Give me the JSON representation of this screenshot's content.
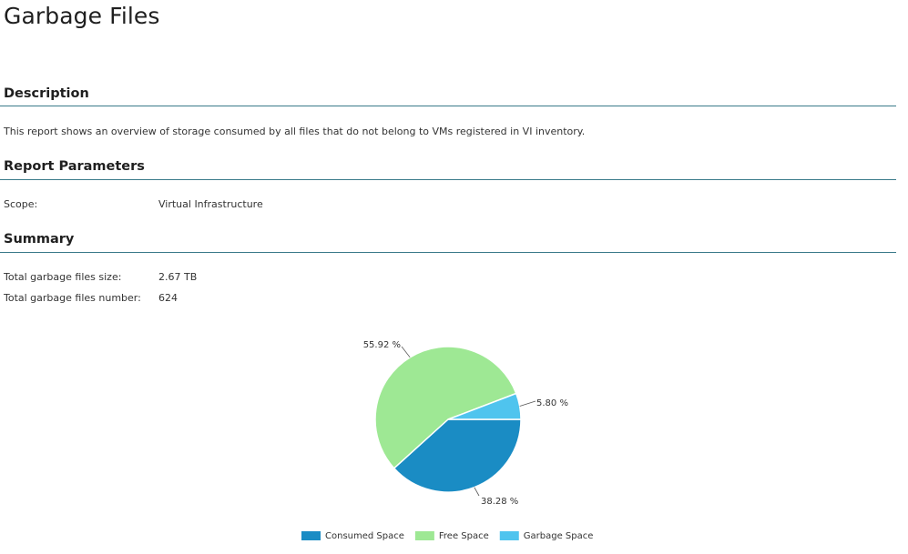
{
  "report": {
    "title": "Garbage Files"
  },
  "description": {
    "heading": "Description",
    "text": "This report shows an overview of storage consumed by all files that do not belong to VMs registered in VI inventory."
  },
  "parameters": {
    "heading": "Report Parameters",
    "scope_label": "Scope:",
    "scope_value": "Virtual Infrastructure"
  },
  "summary": {
    "heading": "Summary",
    "size_label": "Total garbage files size:",
    "size_value": "2.67 TB",
    "number_label": "Total garbage files number:",
    "number_value": "624"
  },
  "chart_data": {
    "type": "pie",
    "title": "",
    "legend_position": "bottom",
    "slices": [
      {
        "name": "Consumed Space",
        "value": 38.28,
        "label": "38.28 %",
        "color": "#1a8cc4"
      },
      {
        "name": "Free Space",
        "value": 55.92,
        "label": "55.92 %",
        "color": "#9ee894"
      },
      {
        "name": "Garbage Space",
        "value": 5.8,
        "label": "5.80 %",
        "color": "#4fc4ee"
      }
    ]
  }
}
